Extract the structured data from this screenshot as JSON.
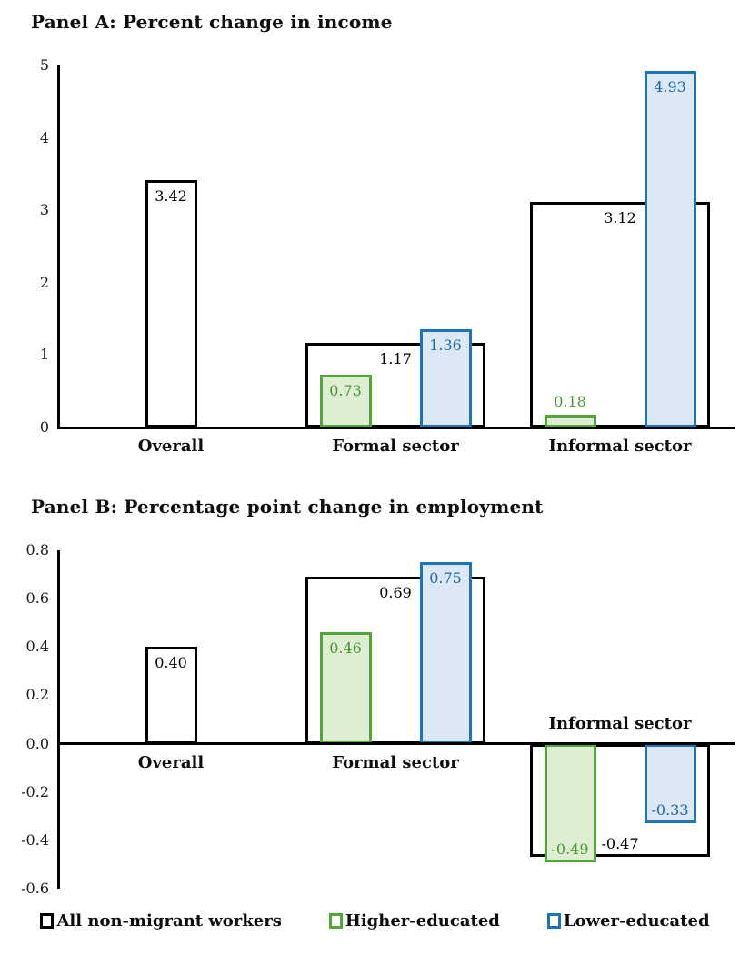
{
  "colors": {
    "black": "#000000",
    "white": "#ffffff",
    "green_border": "#52a638",
    "green_fill": "#ddeed2",
    "green_text": "#47982e",
    "blue_border": "#1e73b9",
    "blue_fill": "#dce8f5",
    "blue_text": "#1a68ac"
  },
  "legend": [
    {
      "series_key": "all",
      "label": "All non-migrant workers"
    },
    {
      "series_key": "higher",
      "label": "Higher-educated"
    },
    {
      "series_key": "lower",
      "label": "Lower-educated"
    }
  ],
  "chart_data": [
    {
      "type": "bar",
      "title": "Panel A: Percent change in income",
      "categories": [
        "Overall",
        "Formal sector",
        "Informal sector"
      ],
      "series": [
        {
          "name": "All non-migrant workers",
          "key": "all",
          "values": [
            3.42,
            1.17,
            3.12
          ],
          "value_labels": [
            "3.42",
            "1.17",
            "3.12"
          ]
        },
        {
          "name": "Higher-educated",
          "key": "higher",
          "values": [
            null,
            0.73,
            0.18
          ],
          "value_labels": [
            null,
            "0.73",
            "0.18"
          ]
        },
        {
          "name": "Lower-educated",
          "key": "lower",
          "values": [
            null,
            1.36,
            4.93
          ],
          "value_labels": [
            null,
            "1.36",
            "4.93"
          ]
        }
      ],
      "ylim": [
        0,
        5
      ],
      "yticks": [
        {
          "v": 0,
          "label": "0"
        },
        {
          "v": 1,
          "label": "1"
        },
        {
          "v": 2,
          "label": "2"
        },
        {
          "v": 3,
          "label": "3"
        },
        {
          "v": 4,
          "label": "4"
        },
        {
          "v": 5,
          "label": "5"
        }
      ],
      "xlabel": "",
      "ylabel": "",
      "grid": false,
      "legend_position": "bottom-shared"
    },
    {
      "type": "bar",
      "title": "Panel B: Percentage point change in employment",
      "categories": [
        "Overall",
        "Formal sector",
        "Informal sector"
      ],
      "series": [
        {
          "name": "All non-migrant workers",
          "key": "all",
          "values": [
            0.4,
            0.69,
            -0.47
          ],
          "value_labels": [
            "0.40",
            "0.69",
            "-0.47"
          ]
        },
        {
          "name": "Higher-educated",
          "key": "higher",
          "values": [
            null,
            0.46,
            -0.49
          ],
          "value_labels": [
            null,
            "0.46",
            "-0.49"
          ]
        },
        {
          "name": "Lower-educated",
          "key": "lower",
          "values": [
            null,
            0.75,
            -0.33
          ],
          "value_labels": [
            null,
            "0.75",
            "-0.33"
          ]
        }
      ],
      "ylim": [
        -0.6,
        0.8
      ],
      "yticks": [
        {
          "v": 0.8,
          "label": "0.8"
        },
        {
          "v": 0.6,
          "label": "0.6"
        },
        {
          "v": 0.4,
          "label": "0.4"
        },
        {
          "v": 0.2,
          "label": "0.2"
        },
        {
          "v": 0,
          "label": "0.0"
        },
        {
          "v": -0.2,
          "label": "-0.2"
        },
        {
          "v": -0.4,
          "label": "-0.4"
        },
        {
          "v": -0.6,
          "label": "-0.6"
        }
      ],
      "xlabel": "",
      "ylabel": "",
      "grid": false,
      "legend_position": "bottom-shared"
    }
  ]
}
